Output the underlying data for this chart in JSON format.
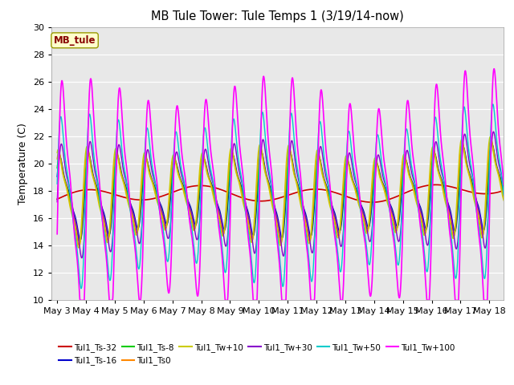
{
  "title": "MB Tule Tower: Tule Temps 1 (3/19/14-now)",
  "ylabel": "Temperature (C)",
  "ylim": [
    10,
    30
  ],
  "xlim_days": [
    -0.2,
    15.5
  ],
  "xtick_labels": [
    "May 3",
    "May 4",
    "May 5",
    "May 6",
    "May 7",
    "May 8",
    "May 9",
    "May 10",
    "May 11",
    "May 12",
    "May 13",
    "May 14",
    "May 15",
    "May 16",
    "May 17",
    "May 18"
  ],
  "bg_color": "#e8e8e8",
  "series_colors": {
    "Tul1_Ts-32": "#cc0000",
    "Tul1_Ts-16": "#0000cc",
    "Tul1_Ts-8": "#00cc00",
    "Tul1_Ts0": "#ff8800",
    "Tul1_Tw+10": "#cccc00",
    "Tul1_Tw+30": "#8800cc",
    "Tul1_Tw+50": "#00cccc",
    "Tul1_Tw+100": "#ff00ff"
  },
  "legend_box_color": "#ffffcc",
  "legend_box_text": "MB_tule",
  "legend_box_text_color": "#880000"
}
